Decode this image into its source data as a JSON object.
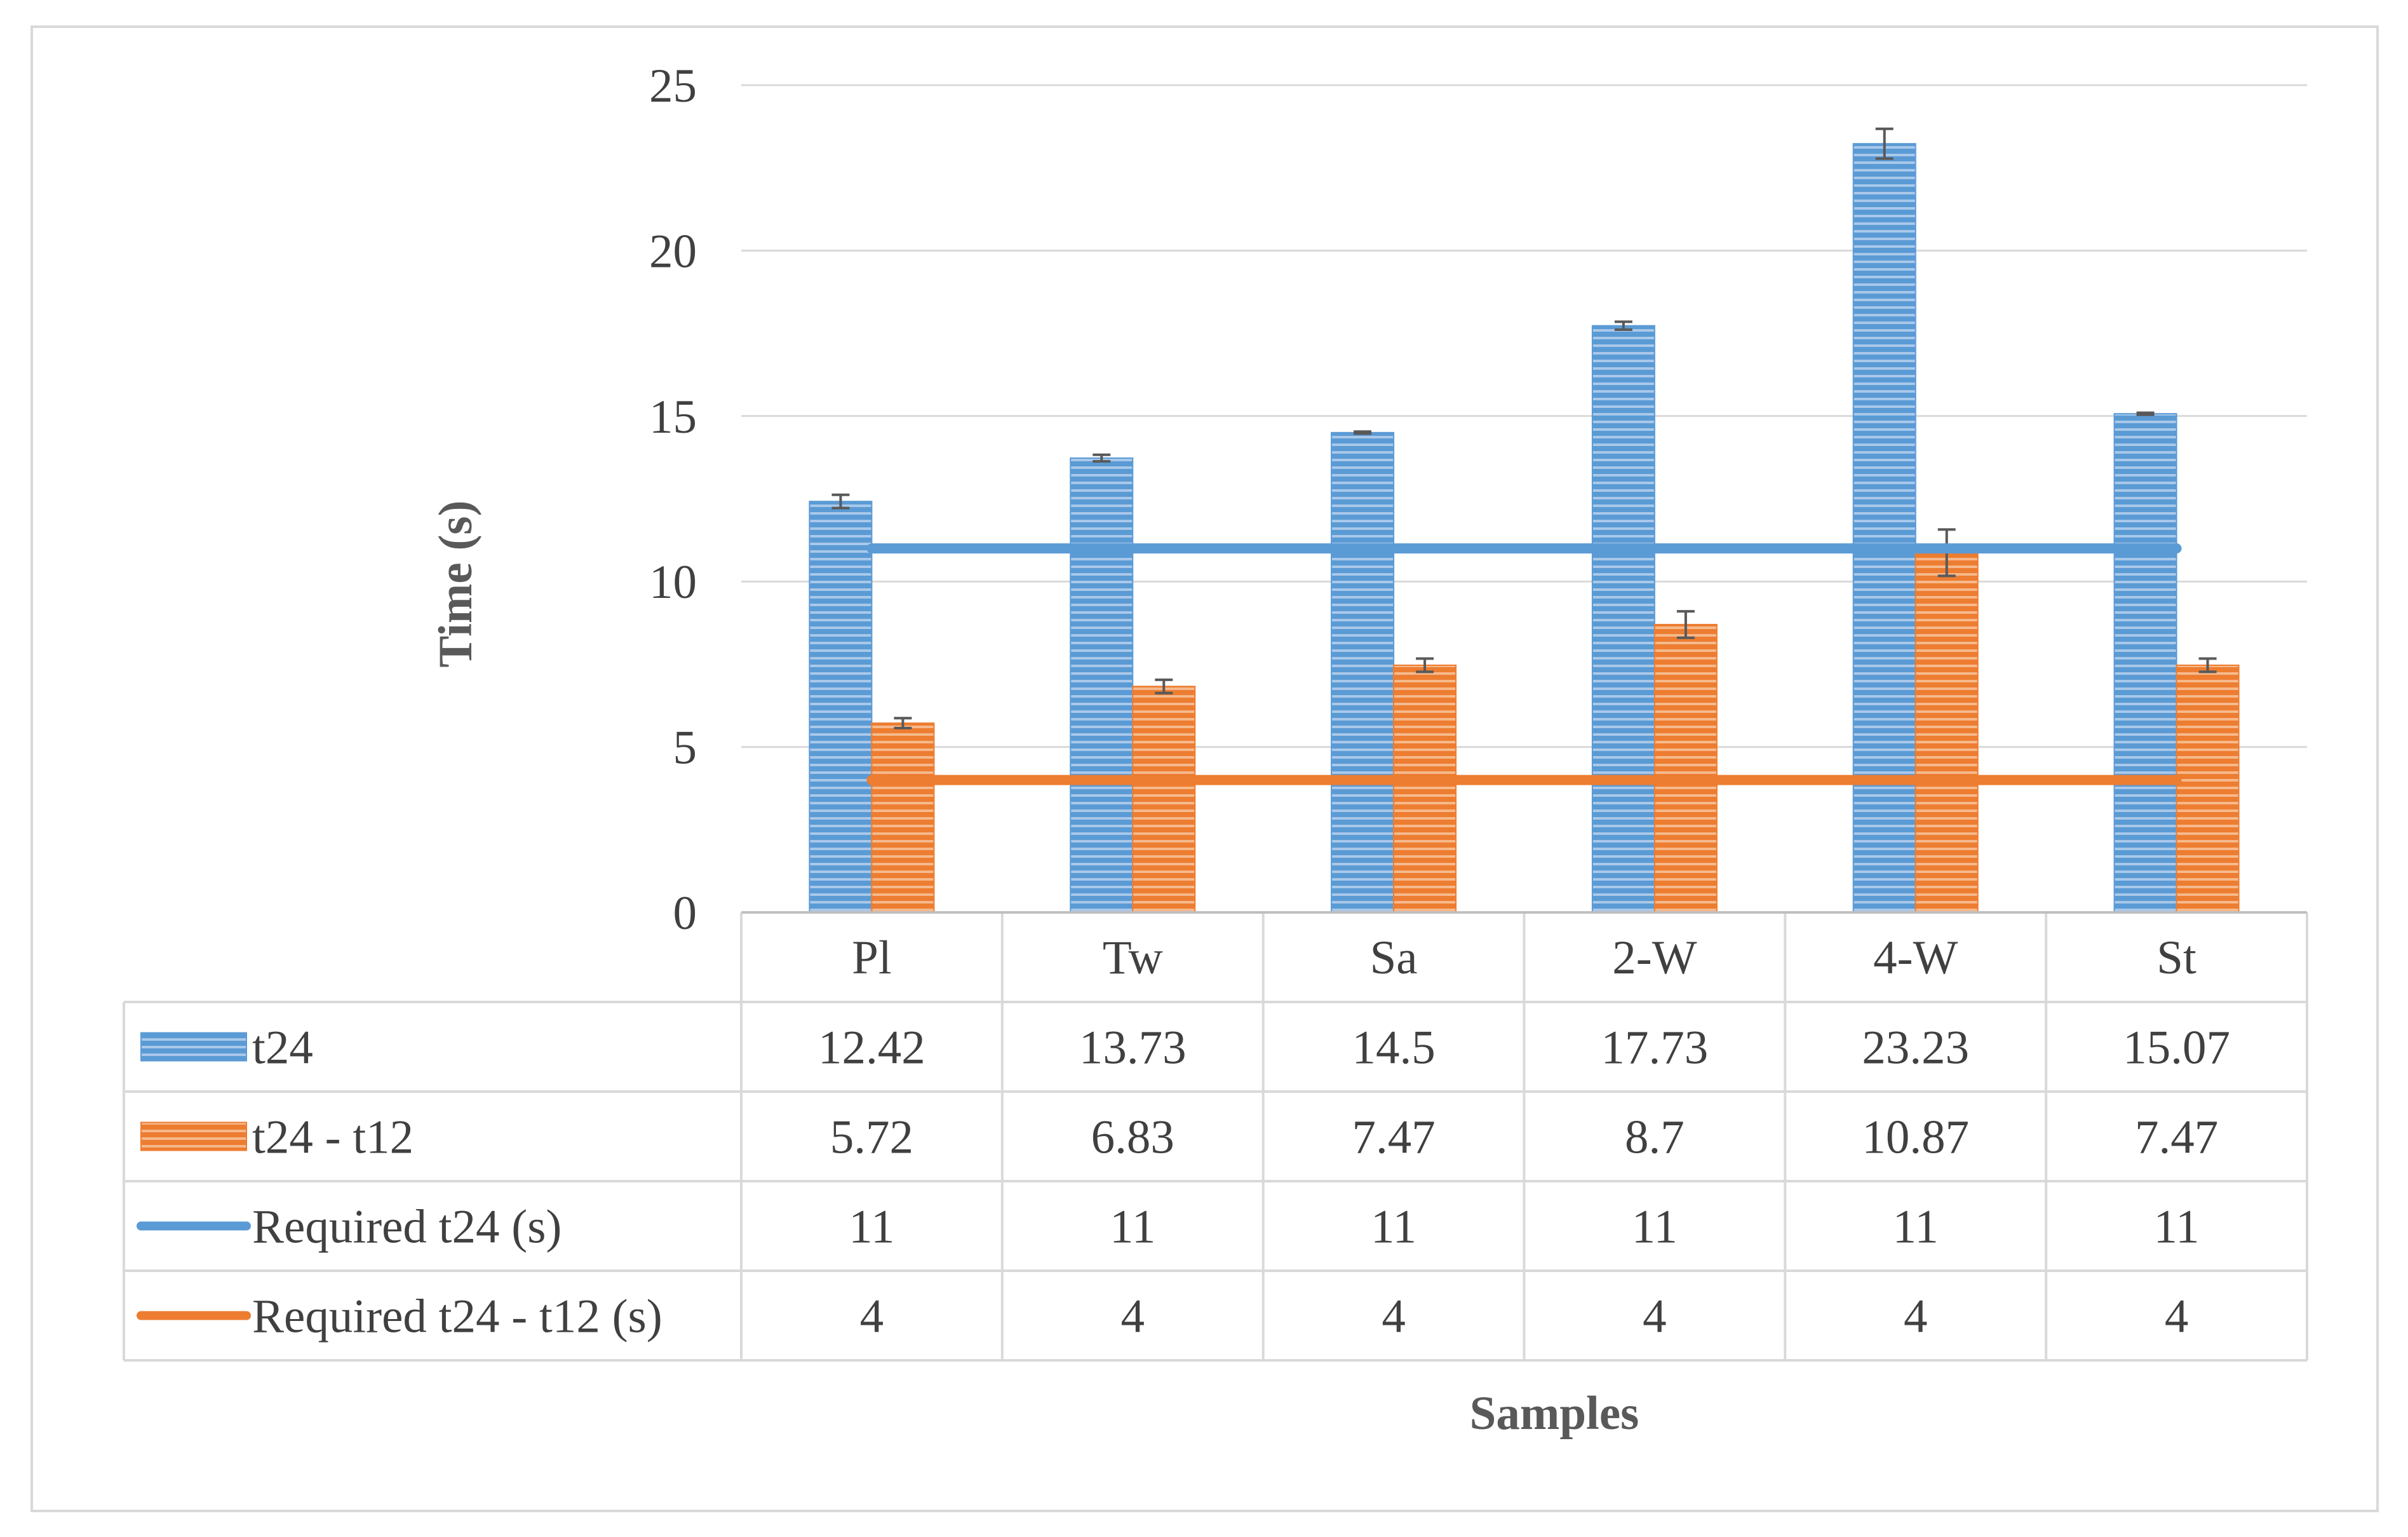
{
  "chart_data": {
    "type": "bar",
    "title": "",
    "xlabel": "Samples",
    "ylabel": "Time (s)",
    "ylim": [
      0,
      25
    ],
    "yticks": [
      0,
      5,
      10,
      15,
      20,
      25
    ],
    "grid": true,
    "categories": [
      "Pl",
      "Tw",
      "Sa",
      "2-W",
      "4-W",
      "St"
    ],
    "bar_series": [
      {
        "name": "t24",
        "color": "#5b9bd5",
        "values": [
          12.42,
          13.73,
          14.5,
          17.73,
          23.23,
          15.07
        ],
        "value_labels": [
          "12.42",
          "13.73",
          "14.5",
          "17.73",
          "23.23",
          "15.07"
        ],
        "errors": [
          0.2,
          0.1,
          0.03,
          0.12,
          0.45,
          0.03
        ]
      },
      {
        "name": "t24 - t12",
        "color": "#ed7d31",
        "values": [
          5.72,
          6.83,
          7.47,
          8.7,
          10.87,
          7.47
        ],
        "value_labels": [
          "5.72",
          "6.83",
          "7.47",
          "8.7",
          "10.87",
          "7.47"
        ],
        "errors": [
          0.15,
          0.2,
          0.2,
          0.4,
          0.7,
          0.2
        ]
      }
    ],
    "line_series": [
      {
        "name": "Required t24 (s)",
        "color": "#5b9bd5",
        "values": [
          11,
          11,
          11,
          11,
          11,
          11
        ],
        "value_labels": [
          "11",
          "11",
          "11",
          "11",
          "11",
          "11"
        ]
      },
      {
        "name": "Required t24 - t12 (s)",
        "color": "#ed7d31",
        "values": [
          4,
          4,
          4,
          4,
          4,
          4
        ],
        "value_labels": [
          "4",
          "4",
          "4",
          "4",
          "4",
          "4"
        ]
      }
    ],
    "legend": "data-table"
  }
}
